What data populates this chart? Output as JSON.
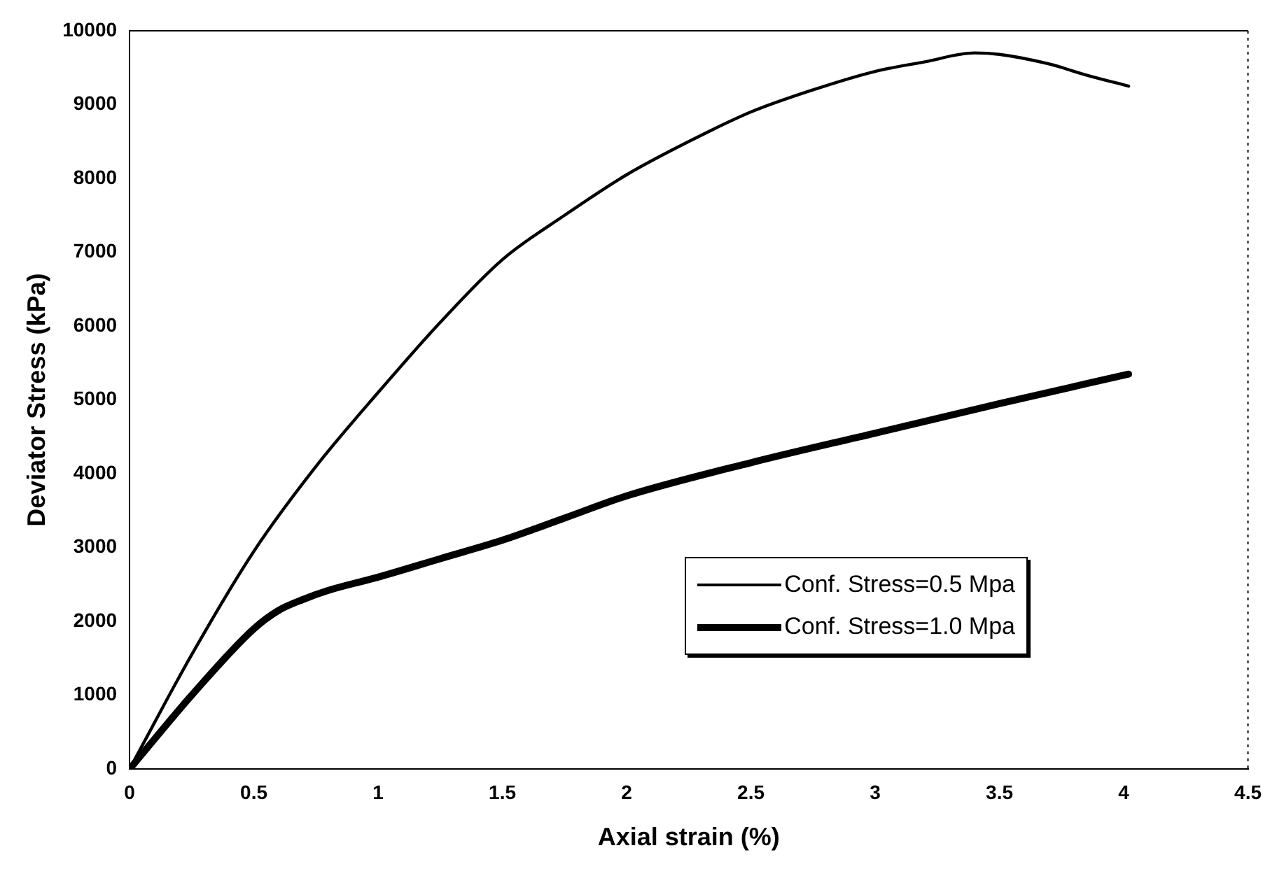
{
  "chart_data": {
    "type": "line",
    "xlabel": "Axial strain (%)",
    "ylabel": "Deviator Stress (kPa)",
    "xlim": [
      0,
      4.5
    ],
    "xticks": [
      0,
      0.5,
      1,
      1.5,
      2,
      2.5,
      3,
      3.5,
      4,
      4.5
    ],
    "ylim": [
      0,
      10000
    ],
    "yticks": [
      0,
      1000,
      2000,
      3000,
      4000,
      5000,
      6000,
      7000,
      8000,
      9000,
      10000
    ],
    "grid": false,
    "legend": "bottom right",
    "marker": "none",
    "line_style": "solid",
    "series": [
      {
        "name": "Conf. Stress=0.5 Mpa",
        "color": "#000000",
        "x": [
          0,
          0.25,
          0.5,
          0.75,
          1,
          1.25,
          1.5,
          1.75,
          2,
          2.25,
          2.5,
          2.75,
          3,
          3.2,
          3.4,
          3.5,
          3.7,
          3.85,
          4.02
        ],
        "values": [
          0,
          1550,
          2950,
          4100,
          5100,
          6050,
          6900,
          7500,
          8050,
          8500,
          8900,
          9200,
          9450,
          9580,
          9700,
          9680,
          9550,
          9400,
          9250
        ]
      },
      {
        "name": "Conf. Stress=1.0 Mpa",
        "color": "#000000",
        "x": [
          0,
          0.25,
          0.5,
          0.6,
          0.7,
          0.8,
          1,
          1.25,
          1.5,
          1.75,
          2,
          2.5,
          3,
          3.5,
          4.02
        ],
        "values": [
          0,
          1000,
          1900,
          2150,
          2300,
          2420,
          2600,
          2850,
          3100,
          3400,
          3700,
          4150,
          4550,
          4950,
          5350
        ]
      }
    ]
  }
}
